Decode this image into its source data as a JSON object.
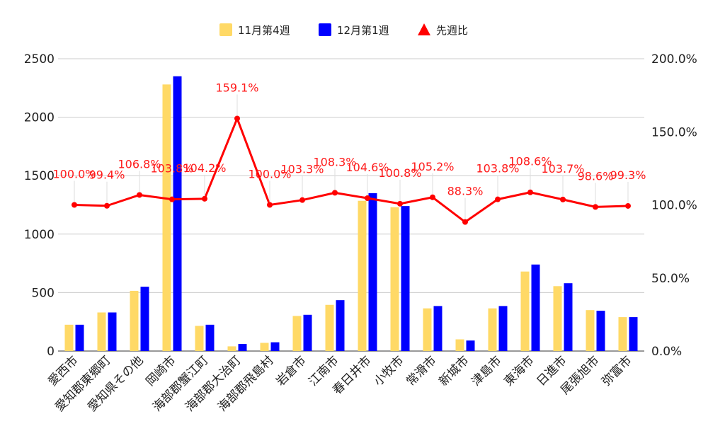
{
  "chart_data": {
    "type": "bar",
    "title": "",
    "xlabel": "",
    "ylabel": "",
    "ylim": [
      0,
      2500
    ],
    "y2lim": [
      0,
      2.0
    ],
    "grid": true,
    "legend_position": "top-center",
    "y_ticks": [
      "0",
      "500",
      "1000",
      "1500",
      "2000",
      "2500"
    ],
    "y2_ticks": [
      "0.0%",
      "50.0%",
      "100.0%",
      "150.0%",
      "200.0%"
    ],
    "categories": [
      "愛西市",
      "愛知郡東郷町",
      "愛知県その他",
      "岡崎市",
      "海部郡蟹江町",
      "海部郡大治町",
      "海部郡飛島村",
      "岩倉市",
      "江南市",
      "春日井市",
      "小牧市",
      "常滑市",
      "新城市",
      "津島市",
      "東海市",
      "日進市",
      "尾張旭市",
      "弥富市"
    ],
    "series": [
      {
        "name": "11月第4週",
        "type": "bar",
        "axis": "left",
        "color": "#ffd966",
        "values": [
          225,
          330,
          515,
          2280,
          215,
          40,
          70,
          300,
          395,
          1285,
          1230,
          365,
          100,
          365,
          680,
          555,
          350,
          290
        ]
      },
      {
        "name": "12月第1週",
        "type": "bar",
        "axis": "left",
        "color": "#0000ff",
        "values": [
          225,
          330,
          550,
          2350,
          225,
          60,
          75,
          310,
          435,
          1350,
          1240,
          385,
          90,
          385,
          740,
          580,
          345,
          290
        ]
      },
      {
        "name": "先週比",
        "type": "line",
        "axis": "right",
        "color": "#ff0000",
        "values": [
          1.0,
          0.994,
          1.068,
          1.038,
          1.042,
          1.591,
          1.0,
          1.033,
          1.083,
          1.046,
          1.008,
          1.052,
          0.883,
          1.038,
          1.086,
          1.037,
          0.986,
          0.993
        ],
        "labels": [
          "100.0%",
          "99.4%",
          "106.8%",
          "103.8%",
          "104.2%",
          "159.1%",
          "100.0%",
          "103.3%",
          "108.3%",
          "104.6%",
          "100.8%",
          "105.2%",
          "88.3%",
          "103.8%",
          "108.6%",
          "103.7%",
          "98.6%",
          "99.3%"
        ]
      }
    ]
  }
}
